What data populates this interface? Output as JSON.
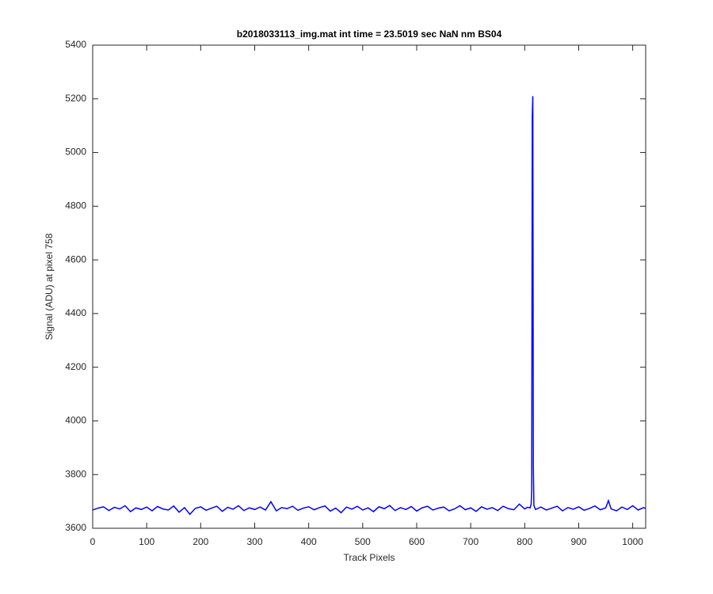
{
  "chart_data": {
    "type": "line",
    "title": "b2018033113_img.mat int time = 23.5019 sec  NaN nm BS04",
    "x_label": "Track Pixels",
    "y_label": "Signal (ADU) at pixel 758",
    "xlim": [
      0,
      1024
    ],
    "ylim": [
      3600,
      5400
    ],
    "xticks": [
      0,
      100,
      200,
      300,
      400,
      500,
      600,
      700,
      800,
      900,
      1000
    ],
    "yticks": [
      3600,
      3800,
      4000,
      4200,
      4400,
      4600,
      4800,
      5000,
      5200,
      5400
    ],
    "grid": false,
    "series": [
      {
        "color": "#0000ff",
        "x": [
          0,
          10,
          20,
          30,
          40,
          50,
          60,
          70,
          80,
          90,
          100,
          110,
          120,
          130,
          140,
          150,
          160,
          170,
          180,
          190,
          200,
          210,
          220,
          230,
          240,
          250,
          260,
          270,
          280,
          290,
          300,
          310,
          320,
          330,
          340,
          350,
          360,
          370,
          380,
          390,
          400,
          410,
          420,
          430,
          440,
          450,
          460,
          470,
          480,
          490,
          500,
          510,
          520,
          530,
          540,
          550,
          560,
          570,
          580,
          590,
          600,
          610,
          620,
          630,
          640,
          650,
          660,
          670,
          680,
          690,
          700,
          710,
          720,
          730,
          740,
          750,
          760,
          770,
          780,
          790,
          800,
          805,
          810,
          812,
          813,
          814,
          815,
          816,
          817,
          820,
          830,
          840,
          850,
          860,
          870,
          880,
          890,
          900,
          910,
          920,
          930,
          940,
          950,
          955,
          960,
          970,
          980,
          990,
          1000,
          1010,
          1020,
          1024
        ],
        "values": [
          3668,
          3675,
          3680,
          3666,
          3678,
          3672,
          3684,
          3662,
          3676,
          3670,
          3679,
          3665,
          3681,
          3672,
          3668,
          3683,
          3660,
          3677,
          3652,
          3674,
          3680,
          3667,
          3675,
          3682,
          3663,
          3678,
          3671,
          3684,
          3666,
          3676,
          3670,
          3679,
          3668,
          3699,
          3665,
          3677,
          3673,
          3682,
          3667,
          3675,
          3680,
          3669,
          3677,
          3683,
          3664,
          3675,
          3658,
          3679,
          3671,
          3682,
          3668,
          3676,
          3662,
          3680,
          3673,
          3685,
          3666,
          3677,
          3670,
          3681,
          3664,
          3676,
          3682,
          3668,
          3675,
          3679,
          3665,
          3672,
          3684,
          3669,
          3676,
          3663,
          3680,
          3671,
          3677,
          3666,
          3682,
          3673,
          3669,
          3690,
          3672,
          3678,
          3676,
          3690,
          3745,
          5130,
          5210,
          3830,
          3685,
          3670,
          3679,
          3668,
          3675,
          3682,
          3665,
          3677,
          3671,
          3680,
          3667,
          3674,
          3683,
          3669,
          3676,
          3703,
          3672,
          3665,
          3679,
          3670,
          3684,
          3668,
          3677,
          3674
        ]
      }
    ]
  }
}
